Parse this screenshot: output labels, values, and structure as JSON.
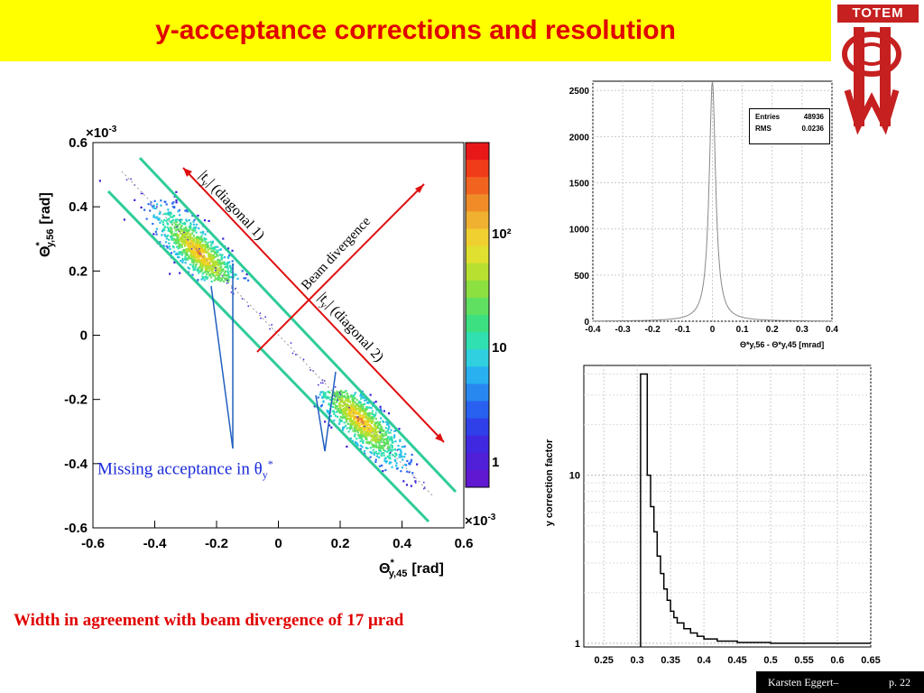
{
  "title": "y-acceptance corrections and resolution",
  "logo": {
    "text": "TOTEM"
  },
  "footer": {
    "author": "Karsten Eggert–",
    "page": "p. 22"
  },
  "width_note": {
    "prefix": "Width in agreement with beam divergence of 17 ",
    "unit": "μrad"
  },
  "missing_label": {
    "prefix": "Missing acceptance in θ",
    "sub": "y",
    "sup": "*"
  },
  "colors": {
    "title_bg": "#ffff00",
    "title_text": "#e00000",
    "accent_green": "#2ecc9a",
    "arrow_red": "#e01010",
    "arrow_blue": "#2060c0"
  },
  "chart_data": [
    {
      "type": "heatmap",
      "description_labels": {
        "xlabel": "Θ*y,45 [rad]",
        "ylabel": "Θ*y,56 [rad]",
        "x_multiplier": "×10-3",
        "y_multiplier": "×10-3"
      },
      "xlabel_main": "Θ",
      "xlabel_sup": "*",
      "xlabel_sub": "y,45",
      "xlabel_unit": "[rad]",
      "ylabel_main": "Θ",
      "ylabel_sup": "*",
      "ylabel_sub": "y,56",
      "ylabel_unit": "[rad]",
      "xlim": [
        -0.6,
        0.6
      ],
      "ylim": [
        -0.6,
        0.6
      ],
      "xticks": [
        "-0.6",
        "-0.4",
        "-0.2",
        "0",
        "0.2",
        "0.4",
        "0.6"
      ],
      "yticks": [
        "-0.6",
        "-0.4",
        "-0.2",
        "0",
        "0.2",
        "0.4",
        "0.6"
      ],
      "colorbar_labels": [
        "1",
        "10",
        "10²"
      ],
      "clusters": [
        {
          "name": "diagonal 1",
          "x_center": -0.26,
          "y_center": 0.26
        },
        {
          "name": "diagonal 2",
          "x_center": 0.26,
          "y_center": -0.26
        }
      ],
      "annotations": {
        "diag1": "|t",
        "diag1_sub": "y",
        "diag1_rest": "| (diagonal 1)",
        "diag2": "|t",
        "diag2_sub": "y",
        "diag2_rest": "| (diagonal 2)",
        "beam": "Beam divergence"
      }
    },
    {
      "type": "line",
      "title": "",
      "xlabel_text": "Θ*y,56 - Θ*y,45 [mrad]",
      "xlim": [
        -0.4,
        0.4
      ],
      "ylim": [
        0,
        2600
      ],
      "xticks": [
        "-0.4",
        "-0.3",
        "-0.2",
        "-0.1",
        "0",
        "0.1",
        "0.2",
        "0.3",
        "0.4"
      ],
      "yticks": [
        "0",
        "500",
        "1000",
        "1500",
        "2000",
        "2500"
      ],
      "peak": {
        "x": 0,
        "y": 2600
      },
      "rms": 0.0236,
      "stats": {
        "entries_label": "Entries",
        "entries_value": "48936",
        "rms_label": "RMS",
        "rms_value": "0.0236"
      }
    },
    {
      "type": "line",
      "title": "",
      "ylabel": "y correction factor",
      "xlim": [
        0.22,
        0.65
      ],
      "ylim_log": [
        0.95,
        45
      ],
      "xticks": [
        "0.25",
        "0.3",
        "0.35",
        "0.4",
        "0.45",
        "0.5",
        "0.55",
        "0.6",
        "0.65"
      ],
      "yticks": [
        "1",
        "10"
      ],
      "x": [
        0.305,
        0.315,
        0.32,
        0.325,
        0.33,
        0.335,
        0.34,
        0.345,
        0.35,
        0.355,
        0.36,
        0.37,
        0.38,
        0.39,
        0.4,
        0.42,
        0.45,
        0.5,
        0.65
      ],
      "y": [
        40,
        10,
        6.5,
        4.6,
        3.3,
        2.6,
        2.1,
        1.8,
        1.55,
        1.42,
        1.32,
        1.22,
        1.15,
        1.1,
        1.06,
        1.03,
        1.01,
        1.0,
        1.0
      ]
    }
  ]
}
